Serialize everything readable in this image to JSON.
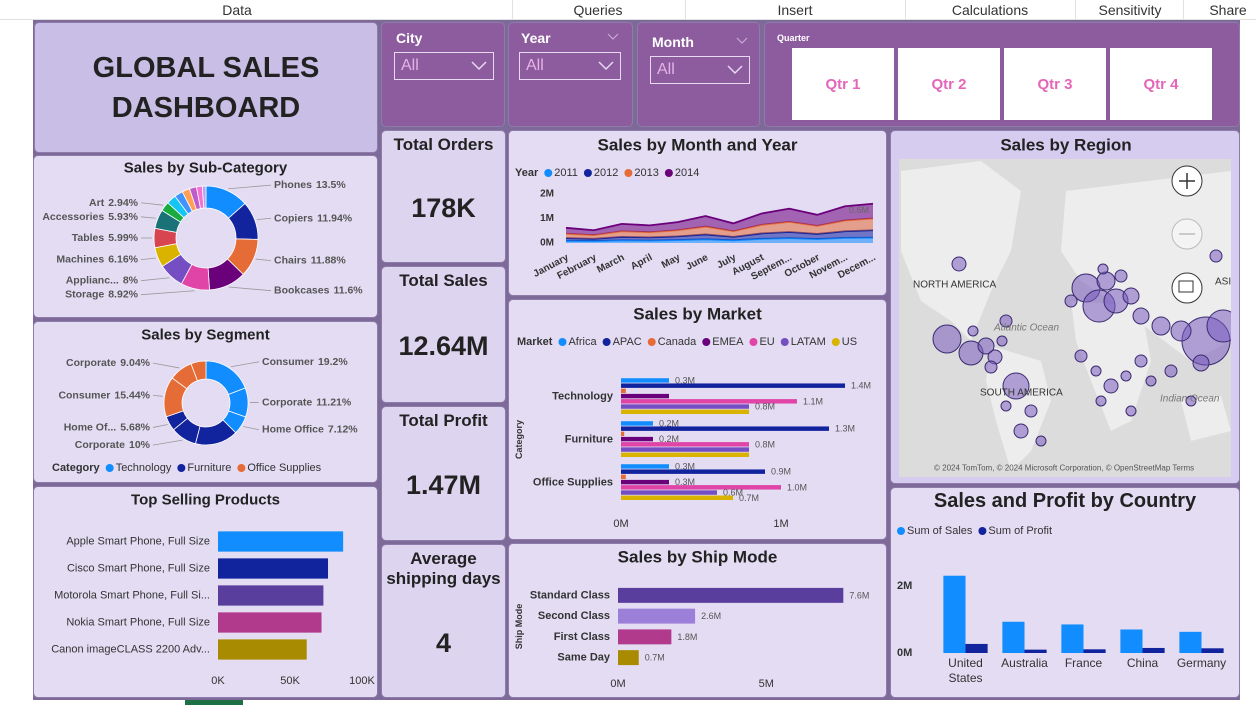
{
  "menu": [
    "Data",
    "Queries",
    "Insert",
    "Calculations",
    "Sensitivity",
    "Share"
  ],
  "header": {
    "title": "GLOBAL SALES DASHBOARD"
  },
  "slicers": [
    {
      "label": "City",
      "value": "All"
    },
    {
      "label": "Year",
      "value": "All"
    },
    {
      "label": "Month",
      "value": "All"
    }
  ],
  "quarter": {
    "label": "Quarter",
    "options": [
      "Qtr 1",
      "Qtr 2",
      "Qtr 3",
      "Qtr 4"
    ]
  },
  "cards": [
    {
      "label": "Total Orders",
      "value": "178K"
    },
    {
      "label": "Total Sales",
      "value": "12.64M"
    },
    {
      "label": "Total Profit",
      "value": "1.47M"
    },
    {
      "label": "Average shipping days",
      "value": "4"
    }
  ],
  "map": {
    "title": "Sales by Region",
    "labels": [
      "NORTH AMERICA",
      "SOUTH AMERICA",
      "ASIA",
      "Atlantic Ocean",
      "Indian Ocean"
    ],
    "attribution": "© 2024 TomTom, © 2024 Microsoft Corporation, © OpenStreetMap Terms"
  },
  "chart_data": [
    {
      "type": "pie",
      "donut": true,
      "title": "Sales by Sub-Category",
      "categories": [
        "Phones",
        "Copiers",
        "Chairs",
        "Bookcases",
        "Storage",
        "Applianc...",
        "Machines",
        "Tables",
        "Accessories",
        "Art",
        null,
        null,
        null,
        null,
        null,
        null
      ],
      "values": [
        13.5,
        11.94,
        11.88,
        11.6,
        8.92,
        8,
        6.16,
        5.99,
        5.93,
        2.94,
        3.0,
        2.6,
        2.4,
        2.2,
        1.8,
        1.14
      ],
      "value_labels": [
        "13.5%",
        "11.94%",
        "11.88%",
        "11.6%",
        "8.92%",
        "8%",
        "6.16%",
        "5.99%",
        "5.93%",
        "2.94%",
        null,
        null,
        null,
        null,
        null,
        null
      ],
      "colors": [
        "#118DFF",
        "#12239E",
        "#E66C37",
        "#6B007B",
        "#E044A7",
        "#744EC2",
        "#D9B300",
        "#D64550",
        "#197278",
        "#1AAB40",
        "#15C6F4",
        "#4092FF",
        "#FFA058",
        "#BE5DC9",
        "#F472D0",
        "#B5A1FF"
      ]
    },
    {
      "type": "pie",
      "donut": true,
      "title": "Sales by Segment",
      "legend_title": "Category",
      "series": [
        {
          "name": "Technology",
          "color": "#118DFF",
          "categories": [
            "Consumer",
            "Corporate",
            "Home Office"
          ],
          "values": [
            19.2,
            11.21,
            7.12
          ],
          "value_labels": [
            "19.2%",
            "11.21%",
            "7.12%"
          ]
        },
        {
          "name": "Furniture",
          "color": "#12239E",
          "categories": [
            null,
            "Corporate",
            "Home Of..."
          ],
          "values": [
            16.5,
            10,
            5.68
          ],
          "value_labels": [
            null,
            "10%",
            "5.68%"
          ]
        },
        {
          "name": "Office Supplies",
          "color": "#E66C37",
          "categories": [
            "Consumer",
            "Corporate",
            null
          ],
          "values": [
            15.44,
            9.04,
            5.81
          ],
          "value_labels": [
            "15.44%",
            "9.04%",
            null
          ]
        }
      ]
    },
    {
      "type": "bar",
      "orientation": "horizontal",
      "title": "Top Selling Products",
      "categories": [
        "Apple Smart Phone, Full Size",
        "Cisco Smart Phone, Full Size",
        "Motorola Smart Phone, Full Si...",
        "Nokia Smart Phone, Full Size",
        "Canon imageCLASS 2200 Adv..."
      ],
      "values": [
        86900,
        76400,
        73200,
        71900,
        61600
      ],
      "colors": [
        "#118DFF",
        "#12239E",
        "#5A3E9E",
        "#B23A8C",
        "#A88B00"
      ],
      "xlim": [
        0,
        100000
      ],
      "xticks": [
        {
          "value": 0,
          "label": "0K"
        },
        {
          "value": 50000,
          "label": "50K"
        },
        {
          "value": 100000,
          "label": "100K"
        }
      ]
    },
    {
      "type": "area",
      "stacked": true,
      "title": "Sales by Month and Year",
      "legend_title": "Year",
      "categories": [
        "January",
        "February",
        "March",
        "April",
        "May",
        "June",
        "July",
        "August",
        "Septem...",
        "October",
        "Novem...",
        "Decem..."
      ],
      "series": [
        {
          "name": "2011",
          "color": "#118DFF",
          "values": [
            0.09,
            0.08,
            0.11,
            0.1,
            0.12,
            0.15,
            0.11,
            0.17,
            0.2,
            0.16,
            0.21,
            0.22
          ]
        },
        {
          "name": "2012",
          "color": "#12239E",
          "values": [
            0.11,
            0.09,
            0.14,
            0.13,
            0.15,
            0.2,
            0.14,
            0.22,
            0.25,
            0.21,
            0.27,
            0.3
          ]
        },
        {
          "name": "2013",
          "color": "#E66C37",
          "values": [
            0.18,
            0.15,
            0.23,
            0.21,
            0.25,
            0.32,
            0.23,
            0.35,
            0.41,
            0.33,
            0.44,
            0.48
          ]
        },
        {
          "name": "2014",
          "color": "#6B007B",
          "values": [
            0.24,
            0.2,
            0.3,
            0.28,
            0.33,
            0.43,
            0.32,
            0.46,
            0.54,
            0.45,
            0.58,
            0.6
          ],
          "value_labels": [
            null,
            null,
            null,
            null,
            null,
            null,
            null,
            null,
            null,
            null,
            null,
            "0.6M"
          ]
        }
      ],
      "ylim": [
        0,
        2.3
      ],
      "yticks": [
        {
          "value": 0,
          "label": "0M"
        },
        {
          "value": 1,
          "label": "1M"
        },
        {
          "value": 2,
          "label": "2M"
        }
      ]
    },
    {
      "type": "bar",
      "orientation": "horizontal",
      "title": "Sales by Market",
      "legend_title": "Market",
      "ylabel": "Category",
      "categories": [
        "Technology",
        "Furniture",
        "Office Supplies"
      ],
      "series": [
        {
          "name": "Africa",
          "color": "#118DFF",
          "values": [
            0.3,
            0.2,
            0.3
          ],
          "value_labels": [
            "0.3M",
            "0.2M",
            "0.3M"
          ]
        },
        {
          "name": "APAC",
          "color": "#12239E",
          "values": [
            1.4,
            1.3,
            0.9
          ],
          "value_labels": [
            "1.4M",
            "1.3M",
            "0.9M"
          ]
        },
        {
          "name": "Canada",
          "color": "#E66C37",
          "values": [
            0.03,
            0.02,
            0.03
          ]
        },
        {
          "name": "EMEA",
          "color": "#6B007B",
          "values": [
            0.3,
            0.2,
            0.3
          ],
          "value_labels": [
            null,
            "0.2M",
            "0.3M"
          ]
        },
        {
          "name": "EU",
          "color": "#E044A7",
          "values": [
            1.1,
            0.8,
            1.0
          ],
          "value_labels": [
            "1.1M",
            "0.8M",
            "1.0M"
          ]
        },
        {
          "name": "LATAM",
          "color": "#744EC2",
          "values": [
            0.8,
            0.8,
            0.6
          ],
          "value_labels": [
            "0.8M",
            null,
            "0.6M"
          ]
        },
        {
          "name": "US",
          "color": "#D9B300",
          "values": [
            0.8,
            0.8,
            0.7
          ],
          "value_labels": [
            null,
            null,
            "0.7M"
          ]
        }
      ],
      "xlim": [
        0,
        1.5
      ],
      "xticks": [
        {
          "value": 0,
          "label": "0M"
        },
        {
          "value": 1,
          "label": "1M"
        }
      ]
    },
    {
      "type": "bar",
      "orientation": "horizontal",
      "title": "Sales by Ship Mode",
      "ylabel": "Ship Mode",
      "categories": [
        "Standard Class",
        "Second Class",
        "First Class",
        "Same Day"
      ],
      "values": [
        7.6,
        2.6,
        1.8,
        0.7
      ],
      "value_labels": [
        "7.6M",
        "2.6M",
        "1.8M",
        "0.7M"
      ],
      "colors": [
        "#5A3E9E",
        "#9C7FD8",
        "#B23A8C",
        "#A88B00"
      ],
      "xlim": [
        0,
        8.5
      ],
      "xticks": [
        {
          "value": 0,
          "label": "0M"
        },
        {
          "value": 5,
          "label": "5M"
        }
      ]
    },
    {
      "type": "bar",
      "orientation": "vertical",
      "title": "Sales and Profit by Country",
      "categories": [
        "United States",
        "Australia",
        "France",
        "China",
        "Germany"
      ],
      "series": [
        {
          "name": "Sum of Sales",
          "color": "#118DFF",
          "values": [
            2.3,
            0.93,
            0.85,
            0.7,
            0.63
          ]
        },
        {
          "name": "Sum of Profit",
          "color": "#12239E",
          "values": [
            0.27,
            0.1,
            0.11,
            0.15,
            0.14
          ]
        }
      ],
      "ylim": [
        0,
        2.5
      ],
      "yticks": [
        {
          "value": 0,
          "label": "0M"
        },
        {
          "value": 2,
          "label": "2M"
        }
      ]
    }
  ]
}
